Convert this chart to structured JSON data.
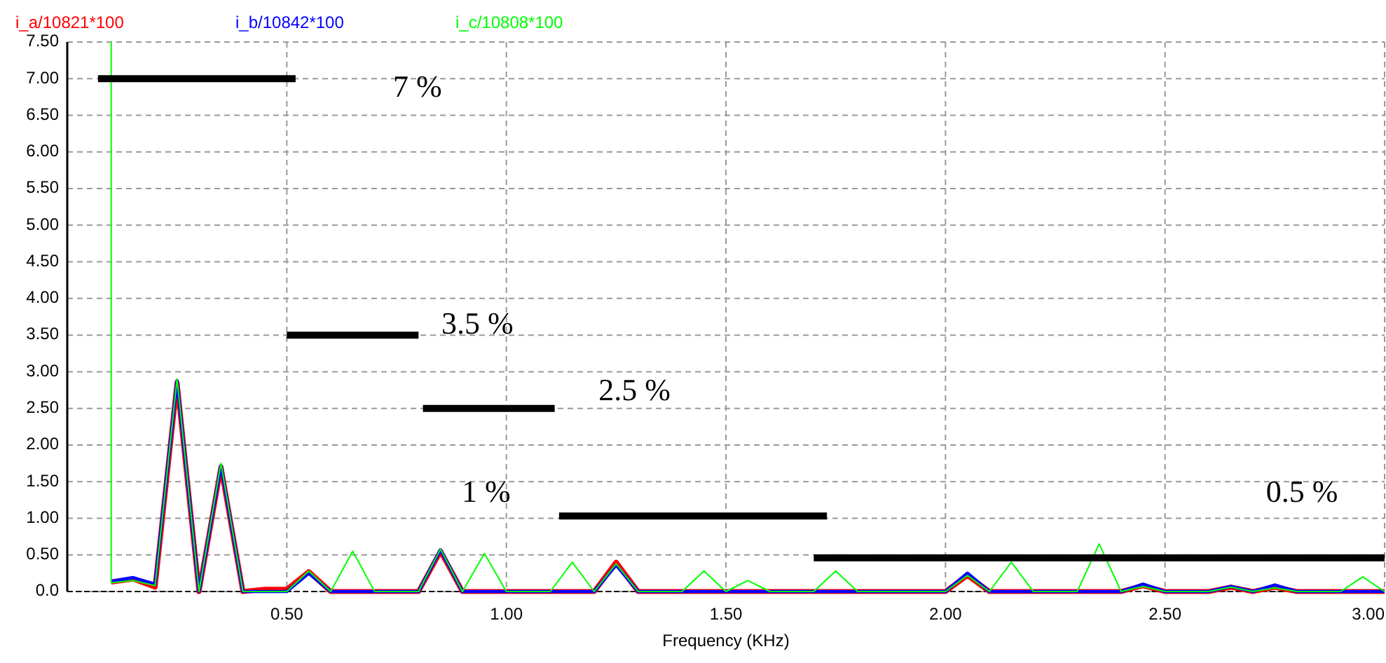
{
  "chart_data": {
    "type": "line",
    "xlabel": "Frequency (KHz)",
    "xlim": [
      0,
      3
    ],
    "ylim": [
      0,
      7.5
    ],
    "xticks": [
      {
        "value": 0.5,
        "label": "0.50"
      },
      {
        "value": 1,
        "label": "1.00"
      },
      {
        "value": 1.5,
        "label": "1.50"
      },
      {
        "value": 2,
        "label": "2.00"
      },
      {
        "value": 2.5,
        "label": "2.50"
      },
      {
        "value": 3,
        "label": "3.00"
      }
    ],
    "yticks": [
      {
        "value": 0,
        "label": "0.0"
      },
      {
        "value": 0.5,
        "label": "0.50"
      },
      {
        "value": 1,
        "label": "1.00"
      },
      {
        "value": 1.5,
        "label": "1.50"
      },
      {
        "value": 2,
        "label": "2.00"
      },
      {
        "value": 2.5,
        "label": "2.50"
      },
      {
        "value": 3,
        "label": "3.00"
      },
      {
        "value": 3.5,
        "label": "3.50"
      },
      {
        "value": 4,
        "label": "4.00"
      },
      {
        "value": 4.5,
        "label": "4.50"
      },
      {
        "value": 5,
        "label": "5.00"
      },
      {
        "value": 5.5,
        "label": "5.50"
      },
      {
        "value": 6,
        "label": "6.00"
      },
      {
        "value": 6.5,
        "label": "6.50"
      },
      {
        "value": 7,
        "label": "7.00"
      },
      {
        "value": 7.5,
        "label": "7.50"
      }
    ],
    "grid": true,
    "legend": "top",
    "marker": "none",
    "line_style": "solid",
    "x": [
      0.1,
      0.15,
      0.2,
      0.25,
      0.3,
      0.35,
      0.4,
      0.45,
      0.5,
      0.55,
      0.6,
      0.65,
      0.7,
      0.75,
      0.8,
      0.85,
      0.9,
      0.95,
      1.0,
      1.05,
      1.1,
      1.15,
      1.2,
      1.25,
      1.3,
      1.35,
      1.4,
      1.45,
      1.5,
      1.55,
      1.6,
      1.65,
      1.7,
      1.75,
      1.8,
      1.85,
      1.9,
      1.95,
      2.0,
      2.05,
      2.1,
      2.15,
      2.2,
      2.25,
      2.3,
      2.35,
      2.4,
      2.45,
      2.5,
      2.55,
      2.6,
      2.65,
      2.7,
      2.75,
      2.8,
      2.85,
      2.9,
      2.95,
      3.0
    ],
    "series": [
      {
        "name": "i_a/10821*100",
        "color": "#ff0000",
        "values": [
          0.13,
          0.17,
          0.06,
          2.85,
          0,
          1.7,
          0,
          0.03,
          0.03,
          0.27,
          0,
          0,
          0,
          0,
          0,
          0.55,
          0,
          0,
          0,
          0,
          0,
          0,
          0,
          0.4,
          0,
          0,
          0,
          0,
          0,
          0,
          0,
          0,
          0,
          0,
          0,
          0,
          0,
          0,
          0,
          0.22,
          0,
          0,
          0,
          0,
          0,
          0,
          0,
          0.08,
          0,
          0,
          0,
          0.06,
          0,
          0.06,
          0,
          0,
          0,
          0,
          0
        ]
      },
      {
        "name": "i_b/10842*100",
        "color": "#0000ff",
        "values": [
          0.14,
          0.19,
          0.1,
          2.88,
          0,
          1.72,
          0,
          0,
          0,
          0.25,
          0,
          0,
          0,
          0,
          0,
          0.57,
          0,
          0,
          0,
          0,
          0,
          0,
          0,
          0.36,
          0,
          0,
          0,
          0,
          0,
          0,
          0,
          0,
          0,
          0,
          0,
          0,
          0,
          0,
          0,
          0.25,
          0,
          0,
          0,
          0,
          0,
          0,
          0,
          0.1,
          0,
          0,
          0,
          0.07,
          0,
          0.09,
          0,
          0,
          0,
          0,
          0
        ]
      },
      {
        "name": "i_c/10808*100",
        "color": "#00ff00",
        "x": [
          0.1,
          0.1,
          0.15,
          0.2,
          0.25,
          0.3,
          0.35,
          0.4,
          0.45,
          0.5,
          0.55,
          0.6,
          0.65,
          0.7,
          0.75,
          0.8,
          0.85,
          0.9,
          0.95,
          1.0,
          1.05,
          1.1,
          1.15,
          1.2,
          1.25,
          1.3,
          1.35,
          1.4,
          1.45,
          1.5,
          1.55,
          1.6,
          1.65,
          1.7,
          1.75,
          1.8,
          1.85,
          1.9,
          1.95,
          2.0,
          2.05,
          2.1,
          2.15,
          2.2,
          2.25,
          2.3,
          2.35,
          2.4,
          2.45,
          2.5,
          2.55,
          2.6,
          2.65,
          2.7,
          2.75,
          2.8,
          2.85,
          2.9,
          2.95,
          3.0
        ],
        "values": [
          7.5,
          0.12,
          0.15,
          0.08,
          2.9,
          0,
          1.75,
          0,
          0,
          0,
          0.28,
          0,
          0.55,
          0,
          0,
          0,
          0.58,
          0,
          0.52,
          0,
          0,
          0,
          0.4,
          0,
          0.38,
          0,
          0,
          0,
          0.28,
          0,
          0.15,
          0,
          0,
          0,
          0.28,
          0,
          0,
          0,
          0,
          0,
          0.22,
          0,
          0.4,
          0,
          0,
          0,
          0.65,
          0,
          0.07,
          0,
          0,
          0,
          0.06,
          0,
          0.05,
          0,
          0,
          0,
          0.2,
          0
        ]
      },
      {
        "color": "#000000",
        "x": [
          0.07,
          0.52
        ],
        "values": [
          7,
          7
        ]
      },
      {
        "color": "#000000",
        "x": [
          0.5,
          0.8
        ],
        "values": [
          3.5,
          3.5
        ]
      },
      {
        "color": "#000000",
        "x": [
          0.81,
          1.11
        ],
        "values": [
          2.5,
          2.5
        ]
      },
      {
        "color": "#000000",
        "x": [
          1.12,
          1.73
        ],
        "values": [
          1.03,
          1.03
        ]
      },
      {
        "color": "#000000",
        "x": [
          1.7,
          3.0
        ],
        "values": [
          0.46,
          0.46
        ]
      }
    ],
    "annotations": [
      "7 %",
      {
        "text": "3.5 %",
        "x": 0.8,
        "y": 3.5
      },
      {
        "text": "2.5 %",
        "x": 1.11,
        "y": 2.5
      },
      {
        "text": "1 %",
        "x": 1.12,
        "y": 1.03
      },
      {
        "text": "0.5 %",
        "x": 3.0,
        "y": 0.46
      }
    ]
  }
}
